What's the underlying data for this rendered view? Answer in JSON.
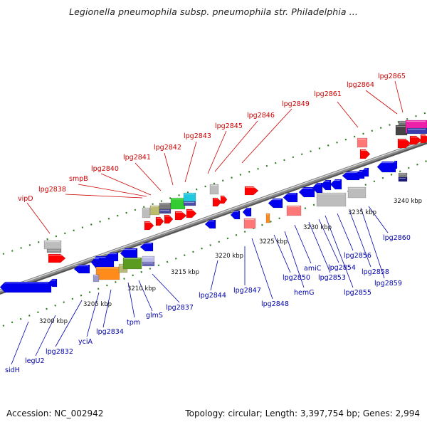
{
  "title": "Legionella pneumophila subsp. pneumophila str. Philadelphia ...",
  "footer": {
    "accession": "Accession: NC_002942",
    "topology": "Topology: circular; Length: 3,397,754 bp; Genes: 2,994"
  },
  "colors": {
    "top_labels": "#cc0000",
    "bottom_labels": "#0000aa",
    "forward_genes": "#ff0000",
    "reverse_genes": "#0000ee",
    "backbone": "#8a8a8a",
    "tick_marks": "#2e7d1f"
  },
  "scale_labels": [
    "3200 kbp",
    "3205 kbp",
    "3210 kbp",
    "3215 kbp",
    "3220 kbp",
    "3225 kbp",
    "3230 kbp",
    "3235 kbp",
    "3240 kbp"
  ],
  "top_gene_labels": [
    "vipD",
    "lpg2838",
    "smpB",
    "lpg2840",
    "lpg2841",
    "lpg2842",
    "lpg2843",
    "lpg2845",
    "lpg2846",
    "lpg2849",
    "lpg2861",
    "lpg2864",
    "lpg2865"
  ],
  "bottom_gene_labels": [
    "sidH",
    "legU2",
    "lpg2832",
    "yciA",
    "lpg2834",
    "tpm",
    "glmS",
    "lpg2837",
    "lpg2844",
    "lpg2847",
    "lpg2848",
    "lpg2850",
    "hemG",
    "amiC",
    "lpg2853",
    "lpg2854",
    "lpg2855",
    "lpg2856",
    "lpg2858",
    "lpg2859",
    "lpg2860"
  ]
}
